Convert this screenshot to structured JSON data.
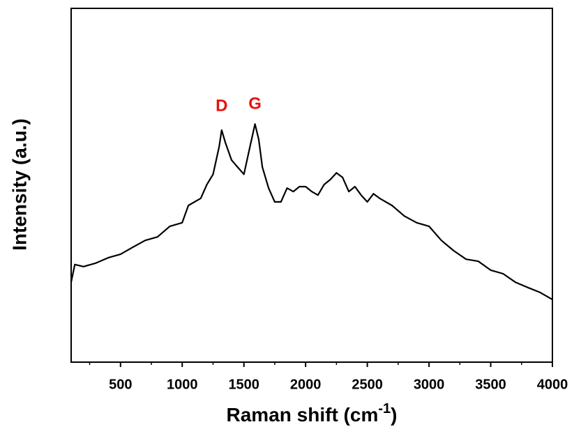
{
  "chart_data": {
    "type": "line",
    "xlabel": {
      "text": "Raman shift (cm",
      "superscript": "-1",
      "suffix": ")"
    },
    "ylabel": "Intensity (a.u.)",
    "x": [
      100,
      130,
      200,
      300,
      400,
      500,
      600,
      700,
      800,
      900,
      1000,
      1050,
      1100,
      1150,
      1200,
      1250,
      1300,
      1320,
      1350,
      1400,
      1450,
      1500,
      1550,
      1590,
      1620,
      1650,
      1700,
      1750,
      1800,
      1850,
      1900,
      1950,
      2000,
      2050,
      2100,
      2150,
      2200,
      2250,
      2300,
      2350,
      2400,
      2450,
      2500,
      2550,
      2600,
      2700,
      2800,
      2900,
      3000,
      3100,
      3200,
      3300,
      3400,
      3500,
      3600,
      3700,
      3800,
      3900,
      4000
    ],
    "values": [
      22.6,
      27.6,
      27.0,
      28.0,
      29.5,
      30.5,
      32.5,
      34.4,
      35.4,
      38.4,
      39.4,
      44.3,
      45.3,
      46.3,
      50.2,
      53.1,
      61.0,
      65.6,
      62.0,
      57.1,
      55.1,
      53.1,
      61.0,
      67.3,
      63.0,
      55.1,
      49.2,
      45.3,
      45.3,
      49.2,
      48.2,
      49.6,
      49.6,
      48.2,
      47.2,
      50.2,
      51.6,
      53.5,
      52.2,
      48.2,
      49.6,
      47.2,
      45.3,
      47.6,
      46.3,
      44.3,
      41.3,
      39.4,
      38.4,
      34.4,
      31.5,
      29.1,
      28.5,
      26.0,
      25.0,
      22.6,
      21.1,
      19.7,
      17.7
    ],
    "color": "#000000",
    "xlim": [
      100,
      4000
    ],
    "ylim": [
      0,
      100
    ],
    "xticks": [
      500,
      1000,
      1500,
      2000,
      2500,
      3000,
      3500,
      4000
    ],
    "xminorticks": [
      250,
      750,
      1250,
      1750,
      2250,
      2750,
      3250,
      3750
    ],
    "annotations": [
      {
        "text": "D",
        "x": 1320,
        "y": 72.2,
        "color": "#e8120c"
      },
      {
        "text": "G",
        "x": 1590,
        "y": 72.8,
        "color": "#e8120c"
      }
    ]
  }
}
